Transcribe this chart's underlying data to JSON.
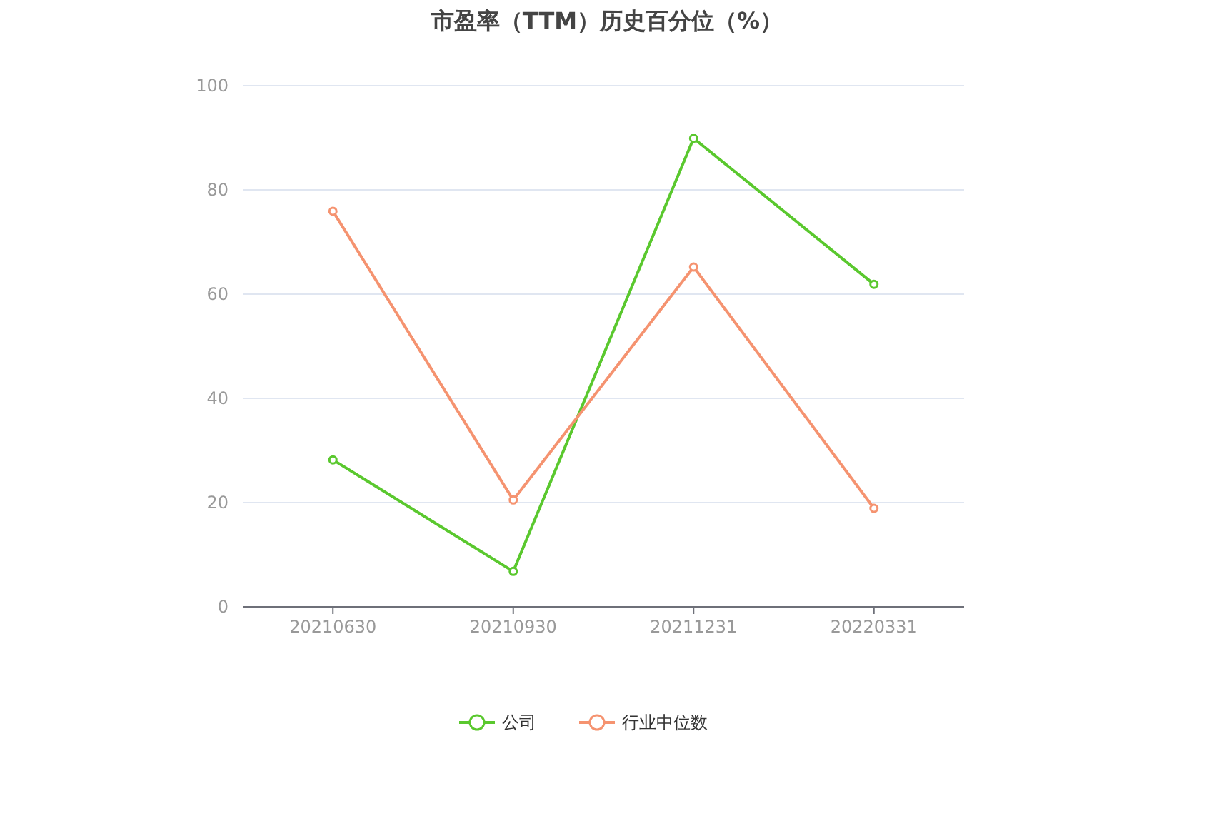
{
  "chart_data": {
    "type": "line",
    "title": "市盈率（TTM）历史百分位（%）",
    "categories": [
      "20210630",
      "20210930",
      "20211231",
      "20220331"
    ],
    "series": [
      {
        "name": "公司",
        "color": "#5ac82e",
        "values": [
          28.2,
          6.8,
          89.9,
          61.9
        ]
      },
      {
        "name": "行业中位数",
        "color": "#f59370",
        "values": [
          75.9,
          20.5,
          65.2,
          18.9
        ]
      }
    ],
    "ylim": [
      0,
      100
    ],
    "yticks": [
      0,
      20,
      40,
      60,
      80,
      100
    ],
    "grid": "y",
    "legend": "bottom",
    "marker": "circle",
    "line_style": "solid"
  }
}
